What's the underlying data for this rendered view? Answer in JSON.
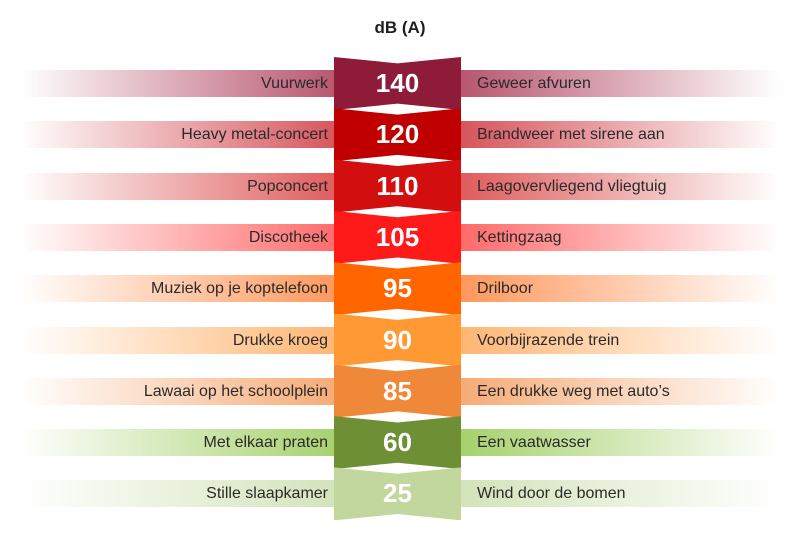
{
  "title": "dB (A)",
  "rows": [
    {
      "value": "140",
      "left": "Vuurwerk",
      "right": "Geweer afvuren",
      "color": "#8e1b37",
      "band": "#b0435f"
    },
    {
      "value": "120",
      "left": "Heavy metal-concert",
      "right": "Brandweer met sirene aan",
      "color": "#c00000",
      "band": "#d2424a"
    },
    {
      "value": "110",
      "left": "Popconcert",
      "right": "Laagovervliegend vliegtuig",
      "color": "#d20e0e",
      "band": "#dc4a4a"
    },
    {
      "value": "105",
      "left": "Discotheek",
      "right": "Kettingzaag",
      "color": "#ff1a1a",
      "band": "#ff5a5a"
    },
    {
      "value": "95",
      "left": "Muziek op je koptelefoon",
      "right": "Drilboor",
      "color": "#ff6600",
      "band": "#ff8c4a"
    },
    {
      "value": "90",
      "left": "Drukke kroeg",
      "right": "Voorbijrazende trein",
      "color": "#ff9933",
      "band": "#ffae64"
    },
    {
      "value": "85",
      "left": "Lawaai op het schoolplein",
      "right": "Een drukke weg met auto’s",
      "color": "#f0883a",
      "band": "#f4a267"
    },
    {
      "value": "60",
      "left": "Met elkaar praten",
      "right": "Een vaatwasser",
      "color": "#6e8f34",
      "band": "#9ccc5c"
    },
    {
      "value": "25",
      "left": "Stille slaapkamer",
      "right": "Wind door de bomen",
      "color": "#c2d79e",
      "band": "#cfe0b2"
    }
  ]
}
